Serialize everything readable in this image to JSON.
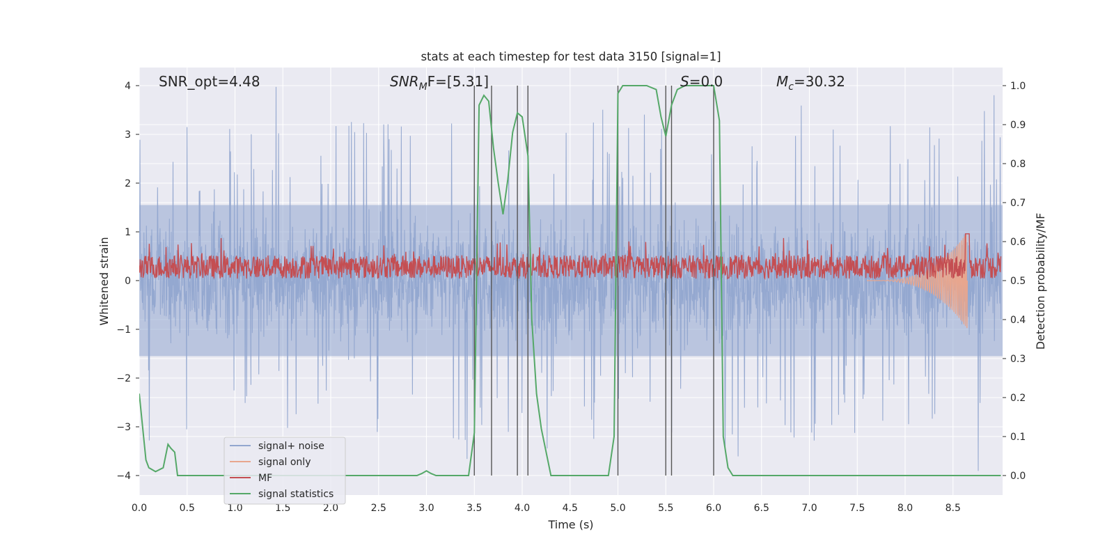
{
  "chart_data": {
    "type": "line",
    "title": "stats at each timestep for test data 3150 [signal=1]",
    "xlabel": "Time (s)",
    "ylabel": "Whitened strain",
    "ylabel_right": "Detection probability/MF",
    "xlim": [
      0,
      9.0
    ],
    "ylim": [
      -4.4,
      4.4
    ],
    "ylim_right": [
      -0.05,
      1.04
    ],
    "xticks": [
      "0.0",
      "0.5",
      "1.0",
      "1.5",
      "2.0",
      "2.5",
      "3.0",
      "3.5",
      "4.0",
      "4.5",
      "5.0",
      "5.5",
      "6.0",
      "6.5",
      "7.0",
      "7.5",
      "8.0",
      "8.5"
    ],
    "yticks": [
      "4",
      "3",
      "2",
      "1",
      "0",
      "−1",
      "−2",
      "−3",
      "−4"
    ],
    "yticks_right": [
      "1.0",
      "0.9",
      "0.8",
      "0.7",
      "0.6",
      "0.5",
      "0.4",
      "0.3",
      "0.2",
      "0.1",
      "0.0"
    ],
    "grid": true,
    "legend_position": "lower-left",
    "annotations": {
      "snr_opt": "SNR_opt=4.48",
      "snr_mf_main": "SNR",
      "snr_mf_sub": "M",
      "snr_mf_rest": "F=[5.31]",
      "s_main": "S",
      "s_rest": "=0.0",
      "mc_main": "M",
      "mc_sub": "c",
      "mc_rest": "=30.32"
    },
    "vertical_lines": [
      3.5,
      3.68,
      3.95,
      4.06,
      5.0,
      5.5,
      5.56,
      6.0
    ],
    "series": [
      {
        "name": "signal+ noise",
        "color": "#92a6cf",
        "axis": "left",
        "envelope": {
          "typical_band": [
            -1.6,
            1.6
          ],
          "max_peak": 4.0,
          "min_peak": -4.0
        }
      },
      {
        "name": "signal only",
        "color": "#e8a68e",
        "axis": "left",
        "chirp": {
          "start": 7.6,
          "end": 8.65,
          "max_amplitude": 1.0
        }
      },
      {
        "name": "MF",
        "color": "#c44e52",
        "axis": "right",
        "baseline": 0.5,
        "max": 0.62
      },
      {
        "name": "signal statistics",
        "color": "#55a868",
        "axis": "right",
        "x": [
          0.0,
          0.07,
          0.1,
          0.17,
          0.25,
          0.3,
          0.33,
          0.37,
          0.4,
          0.45,
          0.5,
          1.0,
          1.5,
          2.0,
          2.5,
          2.8,
          2.9,
          2.95,
          3.0,
          3.05,
          3.1,
          3.2,
          3.3,
          3.38,
          3.44,
          3.5,
          3.55,
          3.6,
          3.65,
          3.7,
          3.75,
          3.8,
          3.85,
          3.9,
          3.95,
          4.0,
          4.06,
          4.1,
          4.15,
          4.2,
          4.3,
          4.4,
          4.5,
          4.7,
          4.9,
          4.96,
          5.0,
          5.05,
          5.1,
          5.3,
          5.4,
          5.45,
          5.5,
          5.56,
          5.62,
          5.7,
          5.75,
          5.8,
          5.9,
          6.0,
          6.06,
          6.1,
          6.15,
          6.2,
          6.3,
          7.0,
          8.0,
          9.0
        ],
        "y": [
          0.21,
          0.04,
          0.02,
          0.01,
          0.02,
          0.08,
          0.07,
          0.06,
          0.0,
          0.0,
          0.0,
          0.0,
          0.0,
          0.0,
          0.0,
          0.0,
          0.0,
          0.005,
          0.012,
          0.005,
          0.0,
          0.0,
          0.0,
          0.0,
          0.0,
          0.11,
          0.95,
          0.975,
          0.96,
          0.84,
          0.75,
          0.67,
          0.76,
          0.88,
          0.93,
          0.92,
          0.82,
          0.4,
          0.21,
          0.12,
          0.0,
          0.0,
          0.0,
          0.0,
          0.0,
          0.1,
          0.98,
          1.0,
          1.0,
          1.0,
          0.99,
          0.92,
          0.87,
          0.95,
          0.99,
          1.0,
          1.0,
          1.0,
          1.0,
          1.0,
          0.91,
          0.1,
          0.02,
          0.0,
          0.0,
          0.0,
          0.0,
          0.0
        ]
      }
    ]
  }
}
